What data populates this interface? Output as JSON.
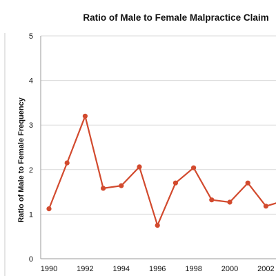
{
  "chart_data": {
    "type": "line",
    "title": "Ratio of Male to Female Malpractice Claim",
    "xlabel": "",
    "ylabel": "Ratio of Male to Female Frequency",
    "x": [
      1990,
      1991,
      1992,
      1993,
      1994,
      1995,
      1996,
      1997,
      1998,
      1999,
      2000,
      2001,
      2002,
      2003
    ],
    "x_tick_labels": [
      "1990",
      "1992",
      "1994",
      "1996",
      "1998",
      "2000",
      "2002"
    ],
    "y_ticks": [
      0,
      1,
      2,
      3,
      4,
      5
    ],
    "ylim": [
      0,
      5
    ],
    "grid": true,
    "series": [
      {
        "values": [
          1.12,
          2.15,
          3.2,
          1.58,
          1.64,
          2.06,
          0.75,
          1.7,
          2.04,
          1.32,
          1.27,
          1.7,
          1.18,
          1.3
        ],
        "color": "#d24a2e"
      }
    ]
  }
}
